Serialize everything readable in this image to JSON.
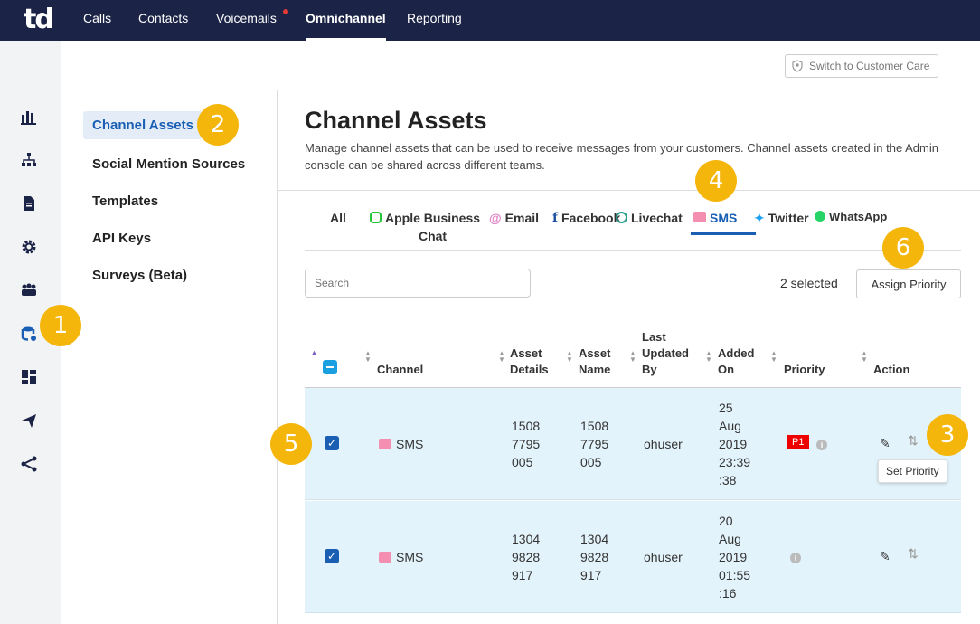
{
  "app": {
    "logo": "td"
  },
  "topnav": {
    "items": [
      "Calls",
      "Contacts",
      "Voicemails",
      "Omnichannel",
      "Reporting"
    ]
  },
  "header": {
    "switch_label": "Switch to Customer Care"
  },
  "leftnav": {
    "items": [
      "Channel Assets",
      "Social Mention Sources",
      "Templates",
      "API Keys",
      "Surveys (Beta)"
    ]
  },
  "page": {
    "title": "Channel Assets",
    "description": "Manage channel assets that can be used to receive messages from your customers. Channel assets created in the Admin console can be shared across different teams."
  },
  "tabs": {
    "all": "All",
    "apple_1": "Apple Business",
    "apple_2": "Chat",
    "email": "Email",
    "facebook": "Facebook",
    "livechat": "Livechat",
    "sms": "SMS",
    "twitter": "Twitter",
    "whatsapp": "WhatsApp"
  },
  "toolbar": {
    "search_placeholder": "Search",
    "selected": "2 selected",
    "assign": "Assign Priority"
  },
  "table": {
    "headers": {
      "channel": "Channel",
      "asset_details_1": "Asset",
      "asset_details_2": "Details",
      "asset_name_1": "Asset",
      "asset_name_2": "Name",
      "updated_1": "Last",
      "updated_2": "Updated",
      "updated_3": "By",
      "added_1": "Added",
      "added_2": "On",
      "priority": "Priority",
      "action": "Action"
    },
    "rows": [
      {
        "channel": "SMS",
        "d1": "1508",
        "d2": "7795",
        "d3": "005",
        "n1": "1508",
        "n2": "7795",
        "n3": "005",
        "by": "ohuser",
        "a1": "25",
        "a2": "Aug",
        "a3": "2019",
        "a4": "23:39",
        "a5": ":38",
        "priority": "P1"
      },
      {
        "channel": "SMS",
        "d1": "1304",
        "d2": "9828",
        "d3": "917",
        "n1": "1304",
        "n2": "9828",
        "n3": "917",
        "by": "ohuser",
        "a1": "20",
        "a2": "Aug",
        "a3": "2019",
        "a4": "01:55",
        "a5": ":16",
        "priority": ""
      }
    ]
  },
  "tooltip": "Set Priority",
  "annotations": [
    "1",
    "2",
    "3",
    "4",
    "5",
    "6"
  ],
  "colors": {
    "nav": "#1b2346",
    "accent": "#1a5fb4",
    "badge": "#f5b60c",
    "row": "#e3f3fb"
  }
}
